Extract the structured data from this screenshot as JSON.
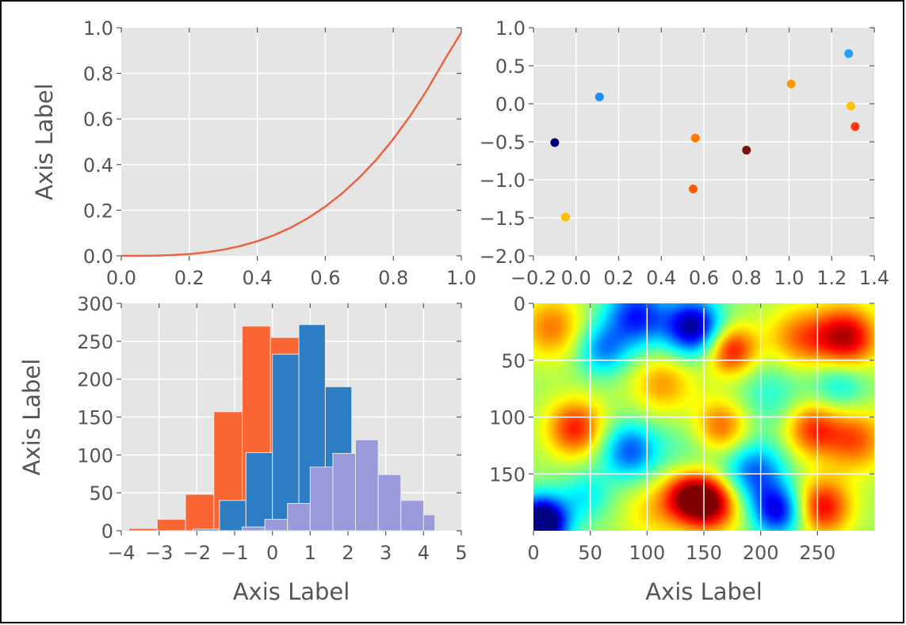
{
  "chart_data": [
    {
      "type": "line",
      "title": "",
      "xlabel": "",
      "ylabel": "Axis Label",
      "xlim": [
        0.0,
        1.0
      ],
      "ylim": [
        0.0,
        1.0
      ],
      "xticks": [
        0.0,
        0.2,
        0.4,
        0.6,
        0.8,
        1.0
      ],
      "xtick_labels": [
        "0.0",
        "0.2",
        "0.4",
        "0.6",
        "0.8",
        "1.0"
      ],
      "yticks": [
        0.0,
        0.2,
        0.4,
        0.6,
        0.8,
        1.0
      ],
      "ytick_labels": [
        "0.0",
        "0.2",
        "0.4",
        "0.6",
        "0.8",
        "1.0"
      ],
      "grid": true,
      "series": [
        {
          "color": "#E8653F",
          "x": [
            0.0,
            0.05,
            0.1,
            0.15,
            0.2,
            0.25,
            0.3,
            0.35,
            0.4,
            0.45,
            0.5,
            0.55,
            0.6,
            0.65,
            0.7,
            0.75,
            0.8,
            0.85,
            0.9,
            0.95,
            1.0
          ],
          "y": [
            0.0,
            0.0001,
            0.001,
            0.0034,
            0.008,
            0.0156,
            0.027,
            0.0429,
            0.064,
            0.0911,
            0.125,
            0.1664,
            0.216,
            0.2746,
            0.343,
            0.4219,
            0.512,
            0.6141,
            0.729,
            0.8574,
            0.98
          ]
        }
      ]
    },
    {
      "type": "scatter",
      "title": "",
      "xlabel": "",
      "ylabel": "",
      "xlim": [
        -0.2,
        1.4
      ],
      "ylim": [
        -2.0,
        1.0
      ],
      "xticks": [
        -0.2,
        0.0,
        0.2,
        0.4,
        0.6,
        0.8,
        1.0,
        1.2,
        1.4
      ],
      "xtick_labels": [
        "−0.2",
        "0.0",
        "0.2",
        "0.4",
        "0.6",
        "0.8",
        "1.0",
        "1.2",
        "1.4"
      ],
      "yticks": [
        -2.0,
        -1.5,
        -1.0,
        -0.5,
        0.0,
        0.5,
        1.0
      ],
      "ytick_labels": [
        "−2.0",
        "−1.5",
        "−1.0",
        "−0.5",
        "0.0",
        "0.5",
        "1.0"
      ],
      "grid": true,
      "points": [
        {
          "x": -0.1,
          "y": -0.51,
          "color": "#00007F"
        },
        {
          "x": -0.05,
          "y": -1.49,
          "color": "#FFC000"
        },
        {
          "x": 0.11,
          "y": 0.09,
          "color": "#1F8FFF"
        },
        {
          "x": 0.55,
          "y": -1.12,
          "color": "#FF5A00"
        },
        {
          "x": 0.56,
          "y": -0.45,
          "color": "#FF7A00"
        },
        {
          "x": 0.8,
          "y": -0.61,
          "color": "#7F1010"
        },
        {
          "x": 1.01,
          "y": 0.26,
          "color": "#FF9A00"
        },
        {
          "x": 1.28,
          "y": 0.66,
          "color": "#1FA0FF"
        },
        {
          "x": 1.29,
          "y": -0.03,
          "color": "#FFC200"
        },
        {
          "x": 1.31,
          "y": -0.3,
          "color": "#FF3A10"
        }
      ]
    },
    {
      "type": "bar",
      "subtype": "histogram",
      "title": "",
      "xlabel": "Axis Label",
      "ylabel": "Axis Label",
      "xlim": [
        -4,
        5
      ],
      "ylim": [
        0,
        300
      ],
      "xticks": [
        -4,
        -3,
        -2,
        -1,
        0,
        1,
        2,
        3,
        4,
        5
      ],
      "xtick_labels": [
        "−4",
        "−3",
        "−2",
        "−1",
        "0",
        "1",
        "2",
        "3",
        "4",
        "5"
      ],
      "yticks": [
        0,
        50,
        100,
        150,
        200,
        250,
        300
      ],
      "ytick_labels": [
        "0",
        "50",
        "100",
        "150",
        "200",
        "250",
        "300"
      ],
      "grid": true,
      "series": [
        {
          "color": "#F96634",
          "bin_edges": [
            -3.8,
            -3.05,
            -2.3,
            -1.55,
            -0.8,
            -0.05,
            0.7
          ],
          "counts": [
            3,
            15,
            48,
            157,
            270,
            255
          ]
        },
        {
          "color": "#2D7DC4",
          "bin_edges": [
            -2.1,
            -1.4,
            -0.7,
            0.0,
            0.7,
            1.4,
            2.1,
            2.8
          ],
          "counts": [
            2,
            40,
            103,
            233,
            272,
            190,
            97
          ]
        },
        {
          "color": "#9A99DA",
          "bin_edges": [
            -0.8,
            -0.2,
            0.4,
            1.0,
            1.6,
            2.2,
            2.8,
            3.4,
            4.0
          ],
          "counts": [
            5,
            15,
            36,
            84,
            102,
            120,
            74,
            40
          ]
        },
        {
          "color": "#9A99DA",
          "bin_edges": [
            3.4,
            4.0,
            4.3
          ],
          "counts": [
            40,
            21
          ]
        }
      ]
    },
    {
      "type": "heatmap",
      "title": "",
      "xlabel": "Axis Label",
      "ylabel": "",
      "xlim": [
        0,
        300
      ],
      "ylim": [
        0,
        200
      ],
      "y_inverted": true,
      "colormap": "jet",
      "xticks": [
        0,
        50,
        100,
        150,
        200,
        250
      ],
      "xtick_labels": [
        "0",
        "50",
        "100",
        "150",
        "200",
        "250"
      ],
      "yticks": [
        0,
        50,
        100,
        150
      ],
      "ytick_labels": [
        "0",
        "50",
        "100",
        "150"
      ],
      "grid": true
    }
  ]
}
